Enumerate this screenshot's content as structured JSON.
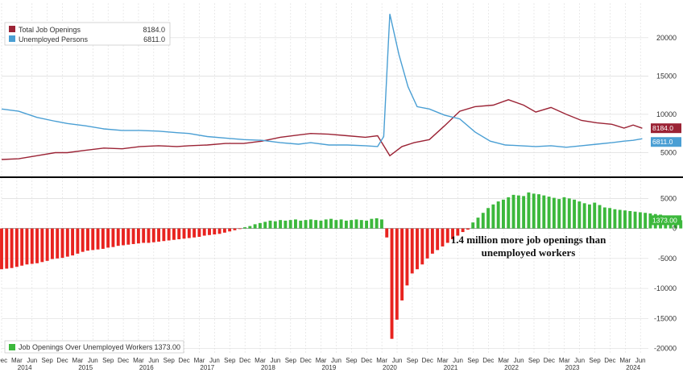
{
  "chart_data": [
    {
      "type": "line",
      "panel": "top",
      "title": "",
      "xlabel": "",
      "ylabel": "",
      "ylim": [
        2000,
        24500
      ],
      "yticks": [
        5000,
        10000,
        15000,
        20000
      ],
      "grid": true,
      "legend": "top-left",
      "series": [
        {
          "name": "Total Job Openings",
          "last_value_label": "8184.0",
          "color": "#9b2335",
          "points": [
            [
              2013.92,
              4100
            ],
            [
              2014.2,
              4200
            ],
            [
              2014.5,
              4600
            ],
            [
              2014.8,
              5000
            ],
            [
              2015.0,
              5000
            ],
            [
              2015.3,
              5300
            ],
            [
              2015.6,
              5600
            ],
            [
              2015.9,
              5500
            ],
            [
              2016.2,
              5800
            ],
            [
              2016.5,
              5900
            ],
            [
              2016.8,
              5800
            ],
            [
              2017.0,
              5900
            ],
            [
              2017.3,
              6000
            ],
            [
              2017.6,
              6200
            ],
            [
              2017.9,
              6200
            ],
            [
              2018.2,
              6500
            ],
            [
              2018.5,
              7000
            ],
            [
              2018.8,
              7300
            ],
            [
              2019.0,
              7500
            ],
            [
              2019.3,
              7400
            ],
            [
              2019.6,
              7200
            ],
            [
              2019.9,
              7000
            ],
            [
              2020.1,
              7200
            ],
            [
              2020.3,
              4600
            ],
            [
              2020.5,
              5800
            ],
            [
              2020.7,
              6300
            ],
            [
              2020.95,
              6700
            ],
            [
              2021.2,
              8500
            ],
            [
              2021.45,
              10400
            ],
            [
              2021.7,
              11000
            ],
            [
              2022.0,
              11200
            ],
            [
              2022.25,
              11900
            ],
            [
              2022.5,
              11200
            ],
            [
              2022.7,
              10300
            ],
            [
              2022.95,
              10900
            ],
            [
              2023.2,
              10000
            ],
            [
              2023.45,
              9200
            ],
            [
              2023.7,
              8900
            ],
            [
              2023.95,
              8700
            ],
            [
              2024.15,
              8200
            ],
            [
              2024.3,
              8600
            ],
            [
              2024.45,
              8184
            ]
          ]
        },
        {
          "name": "Unemployed Persons",
          "last_value_label": "6811.0",
          "color": "#4a9fd4",
          "points": [
            [
              2013.92,
              10700
            ],
            [
              2014.2,
              10400
            ],
            [
              2014.5,
              9600
            ],
            [
              2014.8,
              9100
            ],
            [
              2015.0,
              8800
            ],
            [
              2015.3,
              8500
            ],
            [
              2015.6,
              8100
            ],
            [
              2015.9,
              7900
            ],
            [
              2016.2,
              7900
            ],
            [
              2016.5,
              7800
            ],
            [
              2016.8,
              7600
            ],
            [
              2017.0,
              7500
            ],
            [
              2017.3,
              7100
            ],
            [
              2017.6,
              6900
            ],
            [
              2017.9,
              6700
            ],
            [
              2018.2,
              6600
            ],
            [
              2018.5,
              6300
            ],
            [
              2018.8,
              6100
            ],
            [
              2019.0,
              6300
            ],
            [
              2019.3,
              6000
            ],
            [
              2019.6,
              6000
            ],
            [
              2019.9,
              5900
            ],
            [
              2020.1,
              5800
            ],
            [
              2020.2,
              7100
            ],
            [
              2020.3,
              23100
            ],
            [
              2020.45,
              17800
            ],
            [
              2020.6,
              13600
            ],
            [
              2020.75,
              11000
            ],
            [
              2020.95,
              10700
            ],
            [
              2021.2,
              9900
            ],
            [
              2021.45,
              9400
            ],
            [
              2021.7,
              7700
            ],
            [
              2021.95,
              6500
            ],
            [
              2022.2,
              6000
            ],
            [
              2022.45,
              5900
            ],
            [
              2022.7,
              5800
            ],
            [
              2022.95,
              5900
            ],
            [
              2023.2,
              5700
            ],
            [
              2023.45,
              5900
            ],
            [
              2023.7,
              6100
            ],
            [
              2023.95,
              6300
            ],
            [
              2024.15,
              6500
            ],
            [
              2024.3,
              6600
            ],
            [
              2024.45,
              6811
            ]
          ]
        }
      ]
    },
    {
      "type": "bar",
      "panel": "bottom",
      "title": "",
      "xlabel": "",
      "ylabel": "",
      "ylim": [
        -21000,
        8000
      ],
      "yticks": [
        5000,
        0,
        -5000,
        -10000,
        -15000,
        -20000
      ],
      "grid": true,
      "legend": "bottom-left",
      "series": [
        {
          "name": "Job Openings Over Unemployed Workers",
          "legend_value": "1373.00",
          "last_value_label": "1373.00",
          "positive_color": "#3cb83c",
          "negative_color": "#e8231f",
          "start": 2013.92,
          "step": 0.0833,
          "values": [
            -6800,
            -6700,
            -6600,
            -6400,
            -6200,
            -6000,
            -5900,
            -5800,
            -5600,
            -5400,
            -5100,
            -5000,
            -4900,
            -4700,
            -4500,
            -4200,
            -3900,
            -3700,
            -3600,
            -3500,
            -3400,
            -3200,
            -3100,
            -2900,
            -2800,
            -2700,
            -2600,
            -2500,
            -2400,
            -2400,
            -2300,
            -2200,
            -2100,
            -2000,
            -1900,
            -1800,
            -1700,
            -1600,
            -1500,
            -1400,
            -1200,
            -1100,
            -1000,
            -900,
            -700,
            -500,
            -300,
            -100,
            200,
            400,
            700,
            900,
            1100,
            1300,
            1200,
            1400,
            1300,
            1400,
            1500,
            1300,
            1400,
            1500,
            1400,
            1300,
            1500,
            1600,
            1400,
            1500,
            1300,
            1400,
            1500,
            1400,
            1300,
            1600,
            1700,
            1500,
            -1500,
            -18400,
            -15200,
            -12000,
            -9500,
            -7500,
            -6800,
            -6000,
            -5000,
            -4200,
            -3600,
            -3000,
            -2400,
            -1800,
            -1200,
            -600,
            -200,
            1000,
            1800,
            2600,
            3400,
            4000,
            4500,
            4800,
            5200,
            5600,
            5500,
            5400,
            6000,
            5800,
            5700,
            5500,
            5300,
            5100,
            4900,
            5200,
            5000,
            4800,
            4500,
            4200,
            4000,
            4300,
            3900,
            3500,
            3400,
            3200,
            3100,
            3000,
            2900,
            2800,
            2700,
            2600,
            2500,
            2400,
            2300,
            2000,
            1700,
            1500,
            1373
          ]
        }
      ],
      "annotation": [
        "1.4 million more job openings than",
        "unemployed workers"
      ]
    }
  ],
  "x_axis": {
    "range": [
      2013.92,
      2024.55
    ],
    "years": [
      "2014",
      "2015",
      "2016",
      "2017",
      "2018",
      "2019",
      "2020",
      "2021",
      "2022",
      "2023",
      "2024"
    ],
    "month_labels": [
      "Dec",
      "Mar",
      "Jun",
      "Sep"
    ]
  },
  "colors": {
    "background": "#ffffff",
    "grid": "#dcdcdc",
    "divider": "#000000",
    "axis_text": "#333333"
  }
}
